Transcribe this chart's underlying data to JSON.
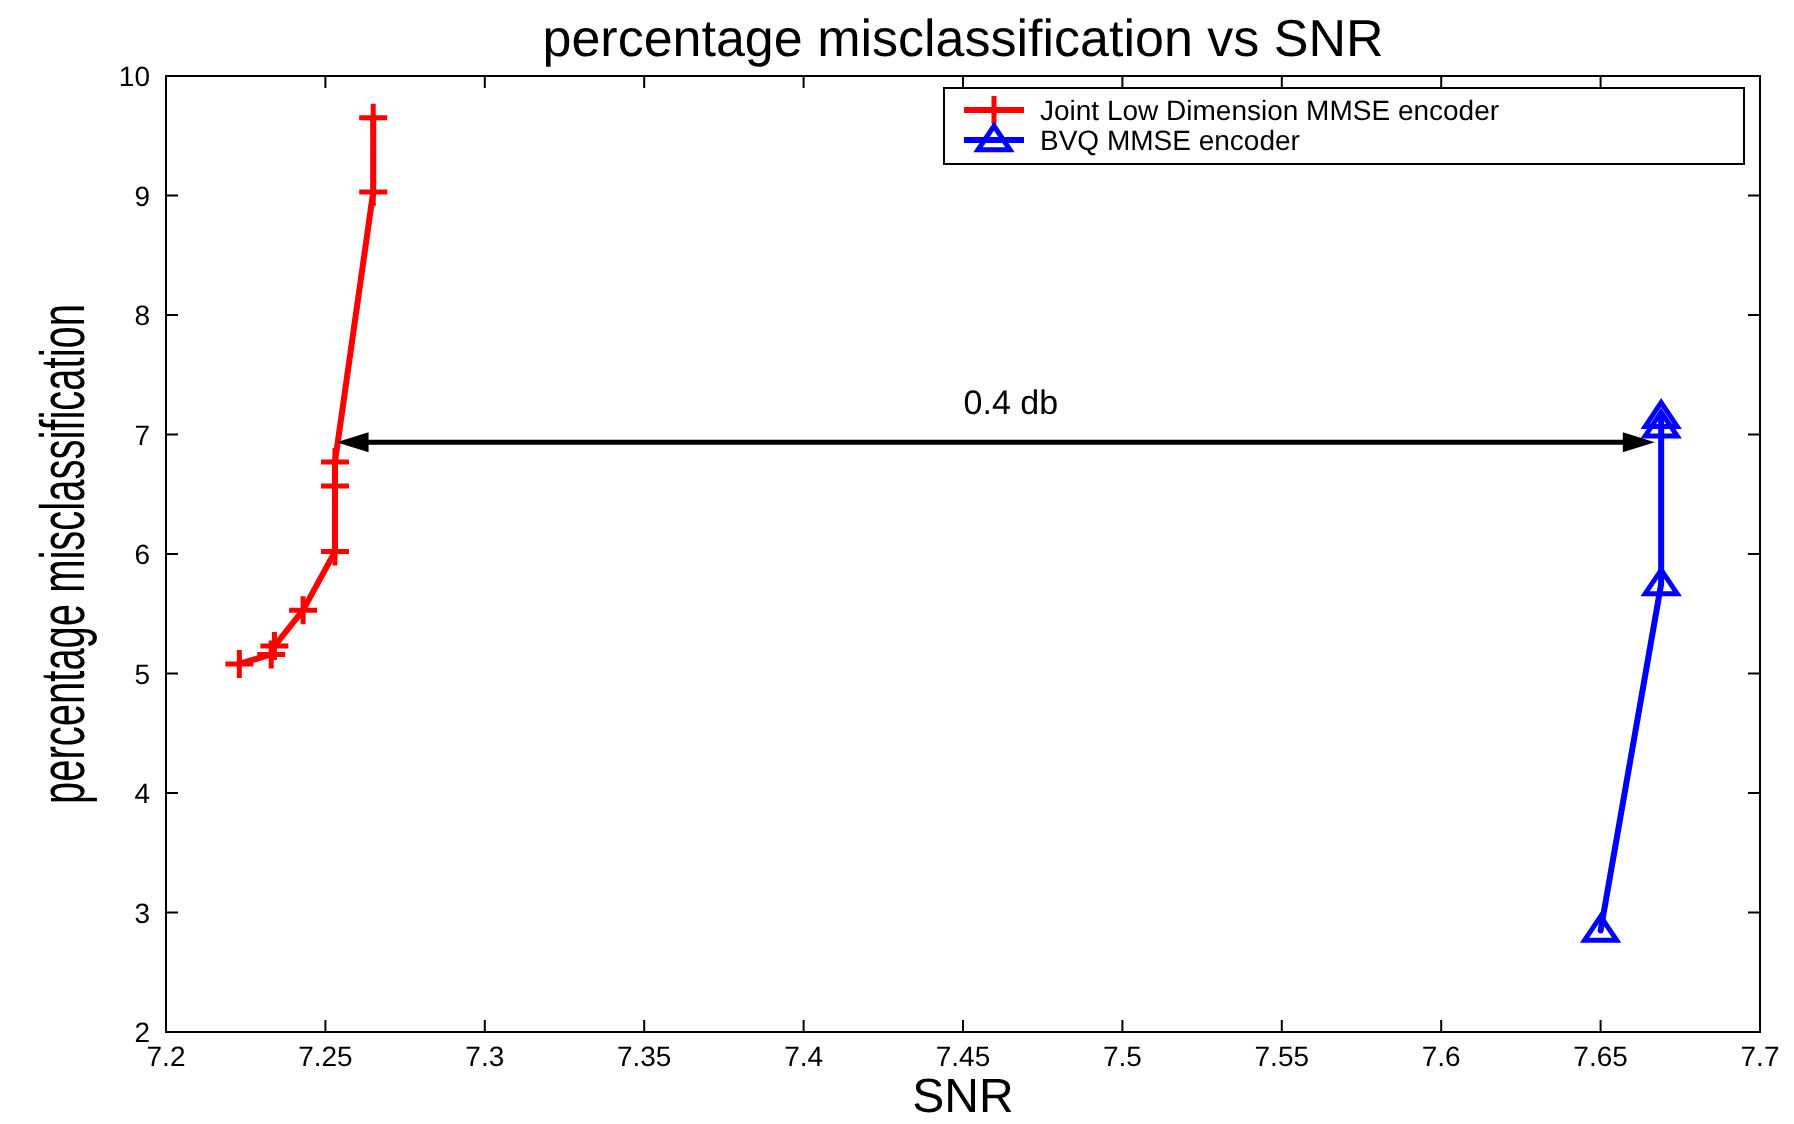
{
  "chart_data": {
    "type": "line",
    "title": "percentage misclassification vs SNR",
    "xlabel": "SNR",
    "ylabel": "percentage misclassification",
    "xlim": [
      7.2,
      7.7
    ],
    "xticks": [
      7.2,
      7.25,
      7.3,
      7.35,
      7.4,
      7.45,
      7.5,
      7.55,
      7.6,
      7.65,
      7.7
    ],
    "ylim": [
      2,
      10
    ],
    "yticks": [
      2,
      3,
      4,
      5,
      6,
      7,
      8,
      9,
      10
    ],
    "grid": false,
    "legend": "top right",
    "line_style": "solid",
    "annotations": [
      "0.4 db"
    ],
    "series": [
      {
        "name": "Joint Low Dimension MMSE encoder",
        "color": "#ff0000",
        "marker": "cross",
        "x": [
          7.223,
          7.233,
          7.234,
          7.243,
          7.253,
          7.253,
          7.253,
          7.265,
          7.265
        ],
        "values": [
          5.08,
          5.16,
          5.23,
          5.53,
          6.02,
          6.57,
          6.77,
          9.03,
          9.65
        ]
      },
      {
        "name": "BVQ MMSE encoder",
        "color": "#0000ff",
        "marker": "triangle",
        "x": [
          7.669,
          7.669,
          7.669,
          7.65
        ],
        "values": [
          7.15,
          7.07,
          5.75,
          2.85
        ]
      }
    ]
  }
}
